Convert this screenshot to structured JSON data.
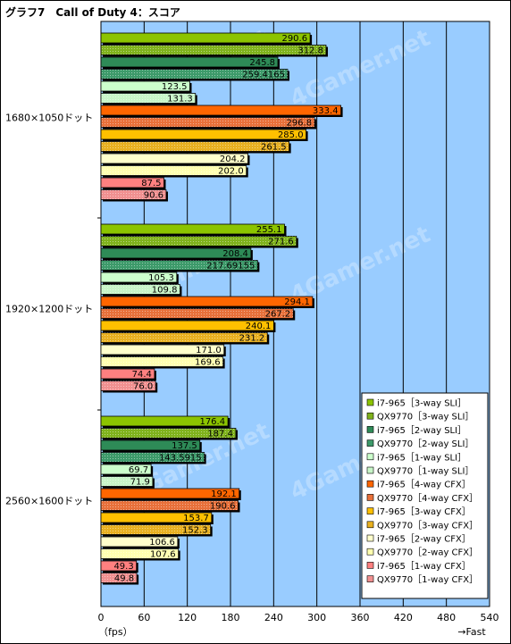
{
  "title": "グラフ7　Call of Duty 4：スコア",
  "chart_data": {
    "type": "bar",
    "orientation": "horizontal",
    "title": "グラフ7　Call of Duty 4：スコア",
    "xlabel": "（fps）",
    "xlabel_right": "→Fast",
    "xlim": [
      0,
      540
    ],
    "x_ticks": [
      "0",
      "60",
      "120",
      "180",
      "240",
      "300",
      "360",
      "420",
      "480",
      "540"
    ],
    "grid": true,
    "legend_position": "bottom-right",
    "watermark": "4Gamer.net",
    "categories": [
      "1680×1050ドット",
      "1920×1200ドット",
      "2560×1600ドット"
    ],
    "series": [
      {
        "name": "i7-965［3-way SLI］",
        "color": "#8cc400",
        "hatch": false,
        "values": [
          290.6,
          255.1,
          176.4
        ],
        "labels": [
          "290.6",
          "255.1",
          "176.4"
        ]
      },
      {
        "name": "QX9770［3-way SLI］",
        "color": "#7fb21c",
        "hatch": true,
        "values": [
          312.8,
          271.6,
          187.4
        ],
        "labels": [
          "312.8",
          "271.6",
          "187.4"
        ]
      },
      {
        "name": "i7-965［2-way SLI］",
        "color": "#2e8b57",
        "hatch": false,
        "values": [
          245.8,
          208.4,
          137.5
        ],
        "labels": [
          "245.8",
          "208.4",
          "137.5"
        ]
      },
      {
        "name": "QX9770［2-way SLI］",
        "color": "#3d9a6a",
        "hatch": true,
        "values": [
          259.4165,
          217.69155,
          143.5915
        ],
        "labels": [
          "259.4165",
          "217.69155",
          "143.5915"
        ]
      },
      {
        "name": "i7-965［1-way SLI］",
        "color": "#ccffcc",
        "hatch": false,
        "values": [
          123.5,
          105.3,
          69.7
        ],
        "labels": [
          "123.5",
          "105.3",
          "69.7"
        ]
      },
      {
        "name": "QX9770［1-way SLI］",
        "color": "#c8f5c8",
        "hatch": true,
        "values": [
          131.3,
          109.8,
          71.9
        ],
        "labels": [
          "131.3",
          "109.8",
          "71.9"
        ]
      },
      {
        "name": "i7-965［4-way CFX］",
        "color": "#ff6600",
        "hatch": false,
        "values": [
          333.4,
          294.1,
          192.1
        ],
        "labels": [
          "333.4",
          "294.1",
          "192.1"
        ]
      },
      {
        "name": "QX9770［4-way CFX］",
        "color": "#e8703a",
        "hatch": true,
        "values": [
          296.8,
          267.2,
          190.6
        ],
        "labels": [
          "296.8",
          "267.2",
          "190.6"
        ]
      },
      {
        "name": "i7-965［3-way CFX］",
        "color": "#ffc000",
        "hatch": false,
        "values": [
          285.0,
          240.1,
          153.7
        ],
        "labels": [
          "285.0",
          "240.1",
          "153.7"
        ]
      },
      {
        "name": "QX9770［3-way CFX］",
        "color": "#e8b020",
        "hatch": true,
        "values": [
          261.5,
          231.2,
          152.3
        ],
        "labels": [
          "261.5",
          "231.2",
          "152.3"
        ]
      },
      {
        "name": "i7-965［2-way CFX］",
        "color": "#ffffcc",
        "hatch": false,
        "values": [
          204.2,
          171.0,
          106.6
        ],
        "labels": [
          "204.2",
          "171.0",
          "106.6"
        ]
      },
      {
        "name": "QX9770［2-way CFX］",
        "color": "#ffffb0",
        "hatch": true,
        "values": [
          202.0,
          169.6,
          107.6
        ],
        "labels": [
          "202.0",
          "169.6",
          "107.6"
        ]
      },
      {
        "name": "i7-965［1-way CFX］",
        "color": "#ff8080",
        "hatch": false,
        "values": [
          87.5,
          74.4,
          49.3
        ],
        "labels": [
          "87.5",
          "74.4",
          "49.3"
        ]
      },
      {
        "name": "QX9770［1-way CFX］",
        "color": "#f09090",
        "hatch": true,
        "values": [
          90.6,
          76.0,
          49.8
        ],
        "labels": [
          "90.6",
          "76.0",
          "49.8"
        ]
      }
    ]
  }
}
